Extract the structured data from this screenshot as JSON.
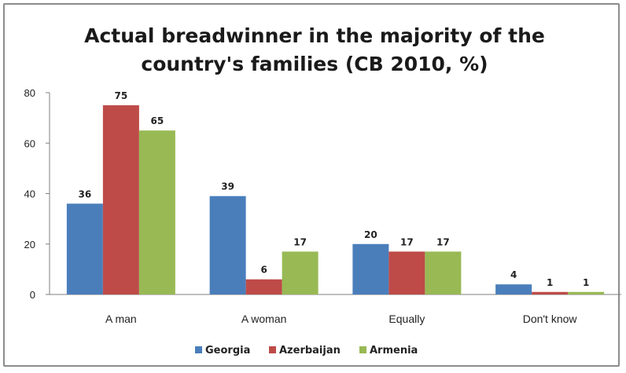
{
  "chart_data": {
    "type": "bar",
    "title": [
      "Actual breadwinner in the majority of the",
      "country's families (CB 2010, %)"
    ],
    "categories": [
      "A man",
      "A woman",
      "Equally",
      "Don't know"
    ],
    "series": [
      {
        "name": "Georgia",
        "color": "#4a7ebb",
        "values": [
          36,
          39,
          20,
          4
        ]
      },
      {
        "name": "Azerbaijan",
        "color": "#be4b48",
        "values": [
          75,
          6,
          17,
          1
        ]
      },
      {
        "name": "Armenia",
        "color": "#98b954",
        "values": [
          65,
          17,
          17,
          1
        ]
      }
    ],
    "ylim": [
      0,
      80
    ],
    "yticks": [
      0,
      20,
      40,
      60,
      80
    ],
    "grid": false,
    "legend_position": "bottom"
  }
}
